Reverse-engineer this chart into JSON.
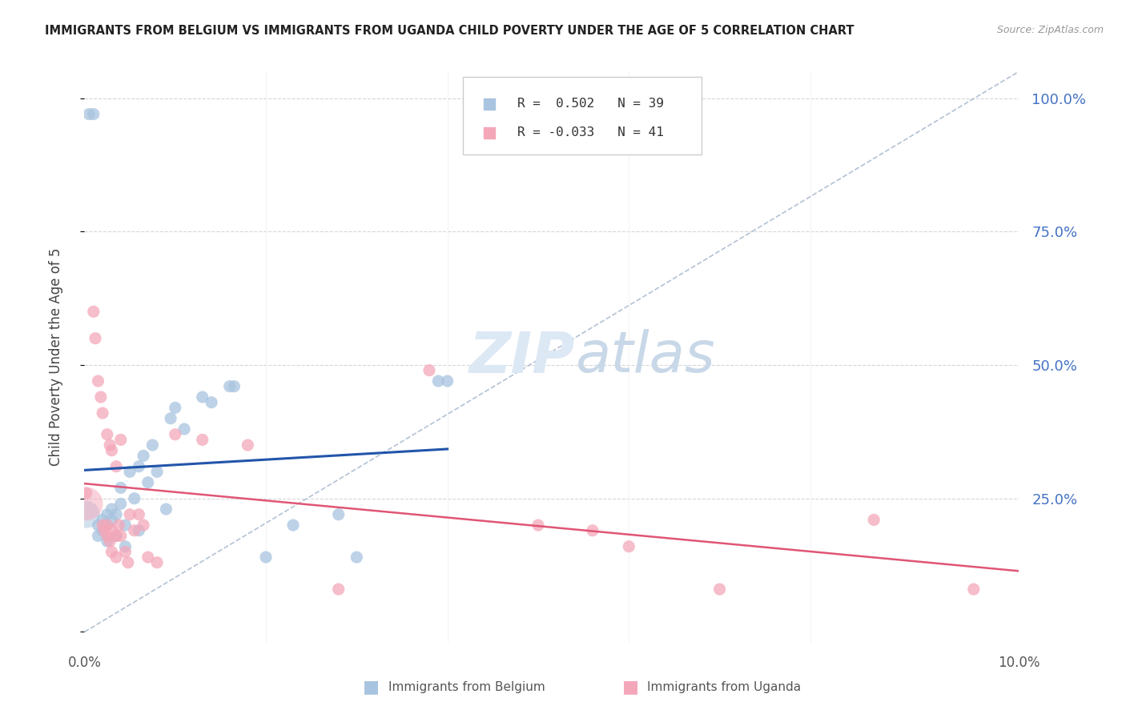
{
  "title": "IMMIGRANTS FROM BELGIUM VS IMMIGRANTS FROM UGANDA CHILD POVERTY UNDER THE AGE OF 5 CORRELATION CHART",
  "source": "Source: ZipAtlas.com",
  "ylabel": "Child Poverty Under the Age of 5",
  "watermark_zip": "ZIP",
  "watermark_atlas": "atlas",
  "legend_belgium_r": " 0.502",
  "legend_belgium_n": "39",
  "legend_uganda_r": "-0.033",
  "legend_uganda_n": "41",
  "belgium_color": "#a8c4e0",
  "uganda_color": "#f4a7b9",
  "belgium_line_color": "#2255aa",
  "uganda_line_color": "#e05575",
  "diagonal_color": "#aabbd0",
  "background_color": "#ffffff",
  "grid_color": "#cccccc",
  "right_axis_color": "#4472c4",
  "xlim": [
    0.0,
    0.103
  ],
  "ylim": [
    -0.02,
    1.05
  ],
  "belgium_scatter": [
    [
      0.0005,
      0.97
    ],
    [
      0.001,
      0.97
    ],
    [
      0.0015,
      0.2
    ],
    [
      0.0015,
      0.18
    ],
    [
      0.002,
      0.21
    ],
    [
      0.002,
      0.19
    ],
    [
      0.0025,
      0.22
    ],
    [
      0.0025,
      0.2
    ],
    [
      0.0025,
      0.17
    ],
    [
      0.003,
      0.23
    ],
    [
      0.003,
      0.21
    ],
    [
      0.0035,
      0.22
    ],
    [
      0.0035,
      0.18
    ],
    [
      0.004,
      0.27
    ],
    [
      0.004,
      0.24
    ],
    [
      0.0045,
      0.2
    ],
    [
      0.0045,
      0.16
    ],
    [
      0.005,
      0.3
    ],
    [
      0.0055,
      0.25
    ],
    [
      0.006,
      0.31
    ],
    [
      0.006,
      0.19
    ],
    [
      0.0065,
      0.33
    ],
    [
      0.007,
      0.28
    ],
    [
      0.0075,
      0.35
    ],
    [
      0.008,
      0.3
    ],
    [
      0.009,
      0.23
    ],
    [
      0.0095,
      0.4
    ],
    [
      0.01,
      0.42
    ],
    [
      0.011,
      0.38
    ],
    [
      0.013,
      0.44
    ],
    [
      0.014,
      0.43
    ],
    [
      0.016,
      0.46
    ],
    [
      0.0165,
      0.46
    ],
    [
      0.02,
      0.14
    ],
    [
      0.023,
      0.2
    ],
    [
      0.028,
      0.22
    ],
    [
      0.03,
      0.14
    ],
    [
      0.039,
      0.47
    ],
    [
      0.04,
      0.47
    ]
  ],
  "uganda_scatter": [
    [
      0.0002,
      0.26
    ],
    [
      0.001,
      0.6
    ],
    [
      0.0012,
      0.55
    ],
    [
      0.0015,
      0.47
    ],
    [
      0.0018,
      0.44
    ],
    [
      0.002,
      0.41
    ],
    [
      0.002,
      0.2
    ],
    [
      0.0022,
      0.19
    ],
    [
      0.0025,
      0.37
    ],
    [
      0.0025,
      0.2
    ],
    [
      0.0025,
      0.18
    ],
    [
      0.0028,
      0.35
    ],
    [
      0.0028,
      0.17
    ],
    [
      0.003,
      0.34
    ],
    [
      0.003,
      0.19
    ],
    [
      0.003,
      0.15
    ],
    [
      0.0035,
      0.31
    ],
    [
      0.0035,
      0.18
    ],
    [
      0.0035,
      0.14
    ],
    [
      0.0038,
      0.2
    ],
    [
      0.004,
      0.36
    ],
    [
      0.004,
      0.18
    ],
    [
      0.0045,
      0.15
    ],
    [
      0.0048,
      0.13
    ],
    [
      0.005,
      0.22
    ],
    [
      0.0055,
      0.19
    ],
    [
      0.006,
      0.22
    ],
    [
      0.0065,
      0.2
    ],
    [
      0.007,
      0.14
    ],
    [
      0.008,
      0.13
    ],
    [
      0.01,
      0.37
    ],
    [
      0.013,
      0.36
    ],
    [
      0.018,
      0.35
    ],
    [
      0.028,
      0.08
    ],
    [
      0.038,
      0.49
    ],
    [
      0.05,
      0.2
    ],
    [
      0.056,
      0.19
    ],
    [
      0.06,
      0.16
    ],
    [
      0.07,
      0.08
    ],
    [
      0.087,
      0.21
    ],
    [
      0.098,
      0.08
    ]
  ],
  "belgium_large_bubble": [
    0.0002,
    0.22,
    600
  ],
  "uganda_large_bubble": [
    0.0002,
    0.24,
    900
  ],
  "base_size": 120
}
